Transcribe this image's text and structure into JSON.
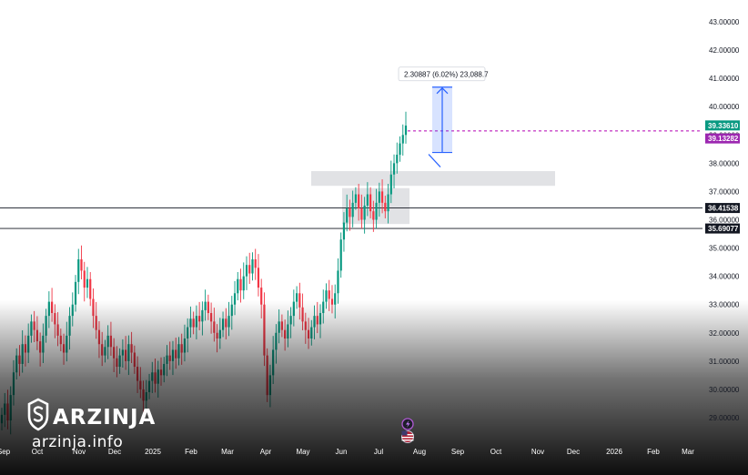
{
  "chart_data": {
    "type": "candlestick",
    "y_axis": {
      "range": [
        28.0,
        43.6
      ],
      "ticks": [
        "43.00000",
        "42.00000",
        "41.00000",
        "40.00000",
        "39.00000",
        "38.00000",
        "37.00000",
        "36.00000",
        "35.00000",
        "34.00000",
        "33.00000",
        "32.00000",
        "31.00000",
        "30.00000",
        "29.00000"
      ],
      "tick_values": [
        43,
        42,
        41,
        40,
        39,
        38,
        37,
        36,
        35,
        34,
        33,
        32,
        31,
        30,
        29
      ]
    },
    "x_axis": {
      "labels": [
        "Sep",
        "Oct",
        "Nov",
        "Dec",
        "2025",
        "Feb",
        "Mar",
        "Apr",
        "May",
        "Jun",
        "Jul",
        "Aug",
        "Sep",
        "Oct",
        "Nov",
        "Dec",
        "2026",
        "Feb",
        "Mar"
      ]
    },
    "price_tags": {
      "last": "39.33610",
      "prev": "39.13282",
      "level_high": "36.41538",
      "level_low": "35.69077"
    },
    "levels": [
      36.41538,
      35.69077
    ],
    "zones": [
      {
        "from": 37.2,
        "to": 37.72
      },
      {
        "from": 35.85,
        "to": 37.12
      }
    ],
    "measure": {
      "label": "2.30887 (6.02%) 23,088.7",
      "from": 38.38,
      "to": 40.69
    },
    "last_value": 39.3361,
    "prev_value": 39.13282,
    "closes": [
      29.1,
      29.5,
      28.9,
      29.8,
      30.6,
      31.2,
      30.9,
      31.6,
      31.3,
      31.9,
      32.4,
      32.1,
      31.7,
      31.3,
      31.9,
      32.6,
      33.1,
      32.7,
      32.3,
      31.9,
      31.6,
      31.3,
      31.9,
      32.6,
      33.0,
      33.8,
      34.6,
      34.2,
      33.6,
      33.9,
      33.2,
      32.6,
      32.1,
      31.6,
      31.2,
      31.5,
      31.9,
      31.5,
      31.1,
      30.8,
      31.2,
      31.4,
      31.0,
      31.6,
      31.3,
      30.8,
      30.3,
      30.0,
      29.6,
      29.9,
      30.3,
      30.6,
      30.2,
      30.7,
      30.5,
      30.9,
      31.2,
      31.0,
      31.4,
      31.1,
      31.6,
      31.3,
      31.8,
      32.2,
      32.5,
      32.2,
      32.6,
      32.4,
      32.8,
      33.1,
      32.7,
      32.4,
      32.0,
      31.8,
      32.1,
      32.5,
      32.2,
      32.6,
      33.0,
      33.4,
      33.9,
      33.5,
      34.0,
      34.4,
      34.1,
      34.6,
      34.3,
      33.6,
      33.0,
      31.2,
      29.8,
      30.5,
      31.4,
      32.0,
      32.4,
      32.1,
      31.8,
      32.3,
      32.6,
      33.1,
      33.4,
      32.9,
      32.4,
      32.1,
      31.8,
      32.2,
      32.6,
      32.3,
      32.7,
      33.1,
      33.5,
      33.2,
      33.0,
      33.4,
      34.2,
      35.3,
      35.9,
      36.4,
      36.1,
      36.6,
      36.9,
      36.4,
      36.0,
      36.5,
      36.9,
      36.3,
      36.0,
      36.6,
      37.0,
      36.6,
      36.3,
      36.9,
      37.6,
      38.0,
      38.3,
      38.7,
      39.0,
      39.33
    ]
  }
}
